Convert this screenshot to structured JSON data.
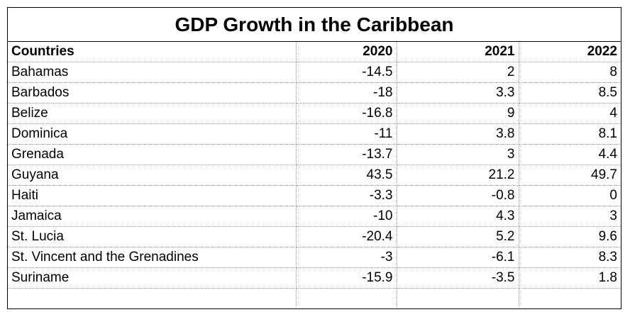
{
  "chart_data": {
    "type": "table",
    "title": "GDP Growth in the Caribbean",
    "columns": [
      "Countries",
      "2020",
      "2021",
      "2022"
    ],
    "rows": [
      {
        "country": "Bahamas",
        "values": [
          "-14.5",
          "2",
          "8"
        ]
      },
      {
        "country": "Barbados",
        "values": [
          "-18",
          "3.3",
          "8.5"
        ]
      },
      {
        "country": "Belize",
        "values": [
          "-16.8",
          "9",
          "4"
        ]
      },
      {
        "country": "Dominica",
        "values": [
          "-11",
          "3.8",
          "8.1"
        ]
      },
      {
        "country": "Grenada",
        "values": [
          "-13.7",
          "3",
          "4.4"
        ]
      },
      {
        "country": "Guyana",
        "values": [
          "43.5",
          "21.2",
          "49.7"
        ]
      },
      {
        "country": "Haiti",
        "values": [
          "-3.3",
          "-0.8",
          "0"
        ]
      },
      {
        "country": "Jamaica",
        "values": [
          "-10",
          "4.3",
          "3"
        ]
      },
      {
        "country": "St. Lucia",
        "values": [
          "-20.4",
          "5.2",
          "9.6"
        ]
      },
      {
        "country": "St. Vincent and the Grenadines",
        "values": [
          "-3",
          "-6.1",
          "8.3"
        ]
      },
      {
        "country": "Suriname",
        "values": [
          "-15.9",
          "-3.5",
          "1.8"
        ]
      }
    ]
  }
}
